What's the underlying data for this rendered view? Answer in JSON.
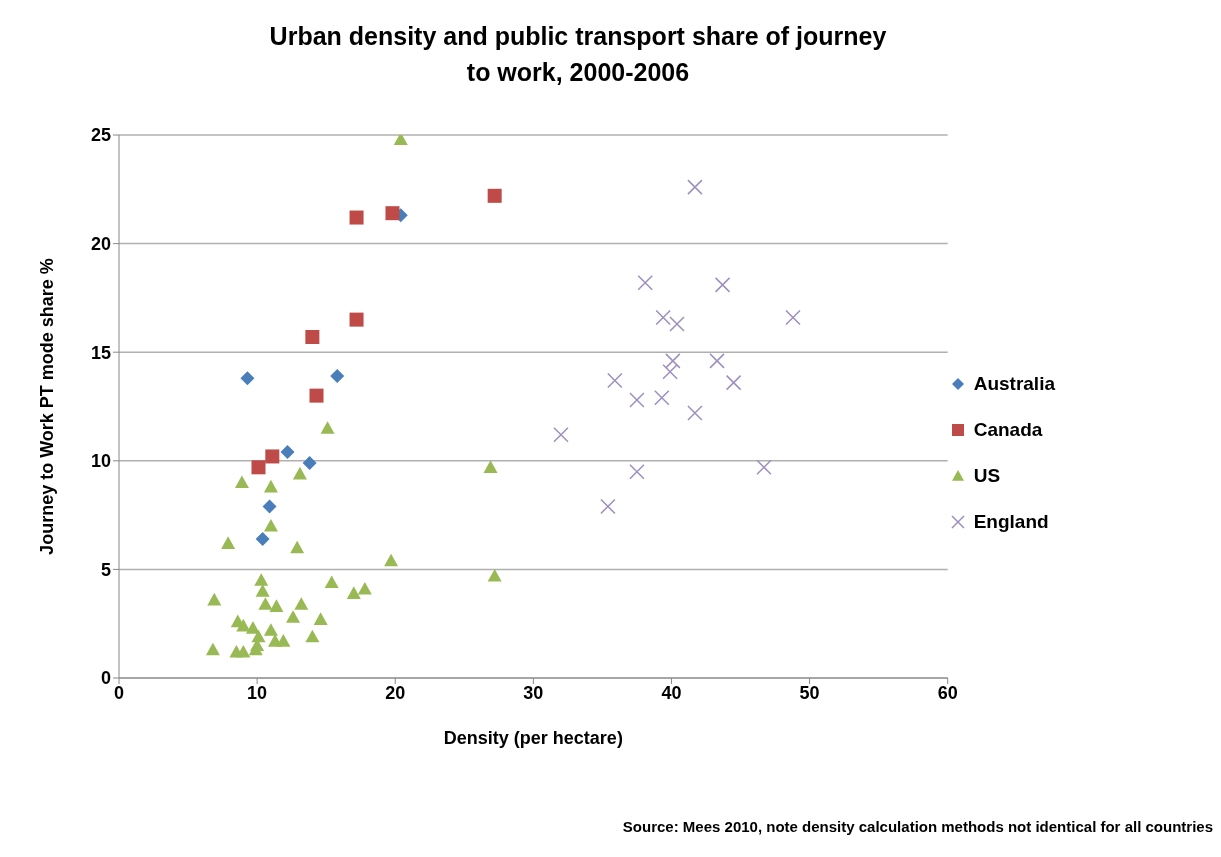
{
  "chart_data": {
    "type": "scatter",
    "title": "Urban density and public transport share of journey to work, 2000-2006",
    "xlabel": "Density (per hectare)",
    "ylabel": "Journey to Work PT mode share %",
    "xlim": [
      0,
      60
    ],
    "xticks": [
      0,
      10,
      20,
      30,
      40,
      50,
      60
    ],
    "ylim": [
      0,
      25
    ],
    "yticks": [
      0,
      5,
      10,
      15,
      20,
      25
    ],
    "grid": "y",
    "legend": "right",
    "annotations": [
      "Source: Mees 2010, note density calculation methods not identical for all countries"
    ],
    "series": [
      {
        "name": "Australia",
        "color": "#4a7ebb",
        "marker": "diamond",
        "x": [
          9.3,
          15.8,
          12.2,
          13.8,
          10.9,
          10.4,
          20.4
        ],
        "values": [
          13.8,
          13.9,
          10.4,
          9.9,
          7.9,
          6.4,
          21.3
        ]
      },
      {
        "name": "Canada",
        "color": "#be4b48",
        "marker": "square",
        "x": [
          17.2,
          19.8,
          27.2,
          17.2,
          14.0,
          14.3,
          10.1,
          11.1
        ],
        "values": [
          21.2,
          21.4,
          22.2,
          16.5,
          15.7,
          13.0,
          9.7,
          10.2
        ]
      },
      {
        "name": "US",
        "color": "#98b954",
        "marker": "triangle",
        "x": [
          20.4,
          15.1,
          26.9,
          8.9,
          11.0,
          13.1,
          11.0,
          7.9,
          12.9,
          19.7,
          27.2,
          10.3,
          10.4,
          15.4,
          17.0,
          17.8,
          6.9,
          10.6,
          11.4,
          13.2,
          12.6,
          14.6,
          8.6,
          9.0,
          9.7,
          11.0,
          10.1,
          14.0,
          11.3,
          11.9,
          6.8,
          8.5,
          9.0,
          9.9,
          10.0
        ],
        "values": [
          24.8,
          11.5,
          9.7,
          9.0,
          8.8,
          9.4,
          7.0,
          6.2,
          6.0,
          5.4,
          4.7,
          4.5,
          4.0,
          4.4,
          3.9,
          4.1,
          3.6,
          3.4,
          3.3,
          3.4,
          2.8,
          2.7,
          2.6,
          2.4,
          2.3,
          2.2,
          1.9,
          1.9,
          1.7,
          1.7,
          1.3,
          1.2,
          1.2,
          1.3,
          1.5
        ]
      },
      {
        "name": "England",
        "color": "#9d8fbf",
        "marker": "cross",
        "x": [
          41.7,
          38.1,
          43.7,
          39.4,
          40.4,
          48.8,
          40.1,
          39.9,
          43.3,
          35.9,
          44.5,
          37.5,
          39.3,
          41.7,
          32.0,
          37.5,
          46.7,
          35.4
        ],
        "values": [
          22.6,
          18.2,
          18.1,
          16.6,
          16.3,
          16.6,
          14.6,
          14.1,
          14.6,
          13.7,
          13.6,
          12.8,
          12.9,
          12.2,
          11.2,
          9.5,
          9.7,
          7.9
        ]
      }
    ]
  }
}
